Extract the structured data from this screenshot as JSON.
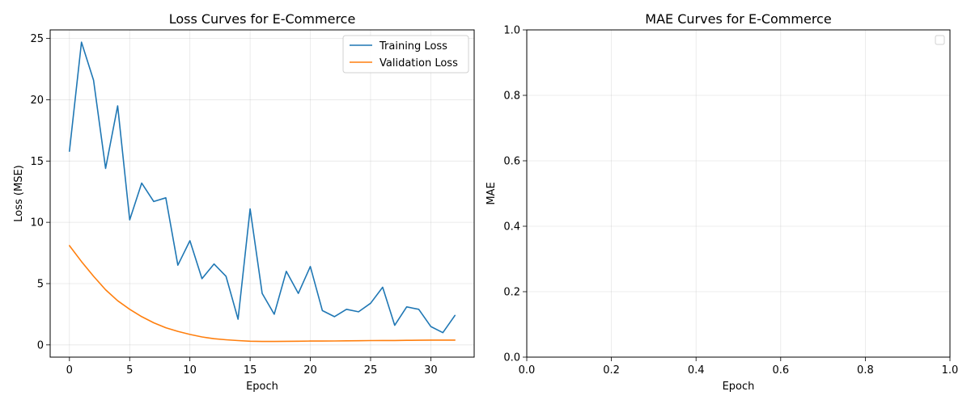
{
  "chart_data": [
    {
      "type": "line",
      "title": "Loss Curves for E-Commerce",
      "xlabel": "Epoch",
      "ylabel": "Loss (MSE)",
      "xlim": [
        -1.6,
        33.6
      ],
      "ylim": [
        -1.0,
        25.7
      ],
      "xticks": [
        0,
        5,
        10,
        15,
        20,
        25,
        30
      ],
      "yticks": [
        0,
        5,
        10,
        15,
        20,
        25
      ],
      "grid": true,
      "legend_position": "top-right",
      "x": [
        0,
        1,
        2,
        3,
        4,
        5,
        6,
        7,
        8,
        9,
        10,
        11,
        12,
        13,
        14,
        15,
        16,
        17,
        18,
        19,
        20,
        21,
        22,
        23,
        24,
        25,
        26,
        27,
        28,
        29,
        30,
        31,
        32
      ],
      "series": [
        {
          "name": "Training Loss",
          "color": "#1f77b4",
          "values": [
            15.8,
            24.7,
            21.6,
            14.4,
            19.5,
            10.2,
            13.2,
            11.7,
            12.0,
            6.5,
            8.5,
            5.4,
            6.6,
            5.6,
            2.1,
            11.1,
            4.2,
            2.5,
            6.0,
            4.2,
            6.4,
            2.8,
            2.3,
            2.9,
            2.7,
            3.4,
            4.7,
            1.6,
            3.1,
            2.9,
            1.5,
            1.0,
            2.4
          ]
        },
        {
          "name": "Validation Loss",
          "color": "#ff7f0e",
          "values": [
            8.1,
            6.8,
            5.6,
            4.5,
            3.6,
            2.9,
            2.3,
            1.8,
            1.4,
            1.1,
            0.85,
            0.65,
            0.5,
            0.42,
            0.35,
            0.3,
            0.28,
            0.28,
            0.29,
            0.3,
            0.31,
            0.31,
            0.32,
            0.33,
            0.34,
            0.35,
            0.36,
            0.36,
            0.37,
            0.38,
            0.39,
            0.39,
            0.39
          ]
        }
      ]
    },
    {
      "type": "line",
      "title": "MAE Curves for E-Commerce",
      "xlabel": "Epoch",
      "ylabel": "MAE",
      "xlim": [
        0.0,
        1.0
      ],
      "ylim": [
        0.0,
        1.0
      ],
      "xticks": [
        0.0,
        0.2,
        0.4,
        0.6,
        0.8,
        1.0
      ],
      "yticks": [
        0.0,
        0.2,
        0.4,
        0.6,
        0.8,
        1.0
      ],
      "grid": true,
      "legend_position": "top-right",
      "x": [],
      "series": []
    }
  ]
}
